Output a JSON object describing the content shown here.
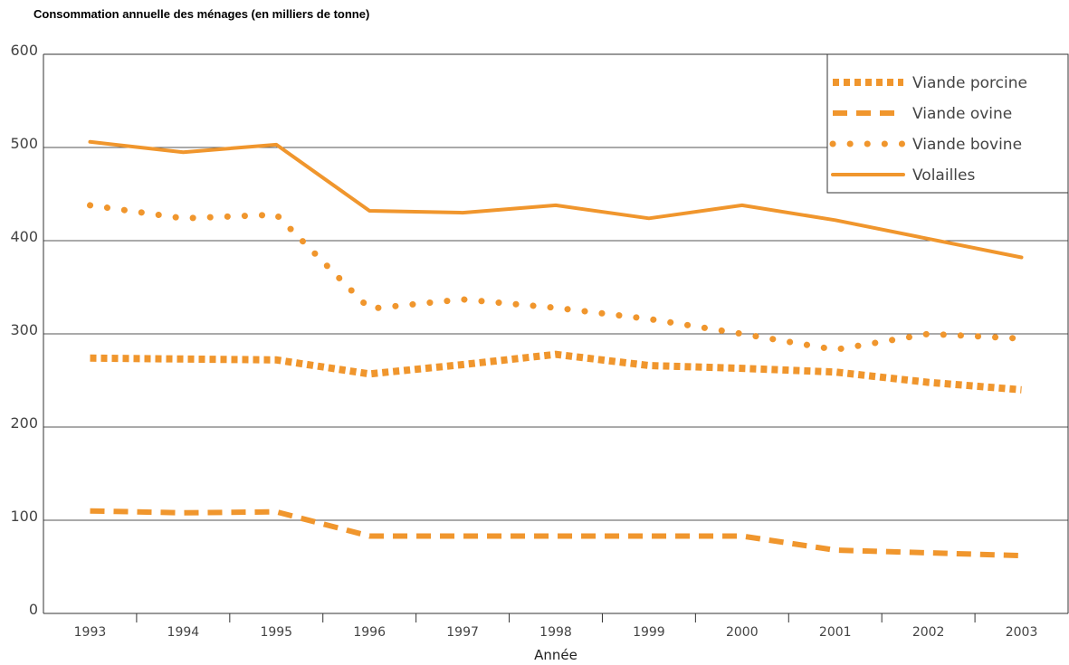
{
  "chart_data": {
    "type": "line",
    "title": "Consommation annuelle des ménages (en milliers de tonne)",
    "xlabel": "Année",
    "ylabel": "",
    "categories": [
      "1993",
      "1994",
      "1995",
      "1996",
      "1997",
      "1998",
      "1999",
      "2000",
      "2001",
      "2002",
      "2003"
    ],
    "ylim": [
      0,
      600
    ],
    "yticks": [
      0,
      100,
      200,
      300,
      400,
      500,
      600
    ],
    "grid": true,
    "legend_position": "top-right",
    "line_color": "#F0962D",
    "series": [
      {
        "name": "Viande porcine",
        "style": "square-dotted",
        "values": [
          274,
          273,
          272,
          257,
          267,
          278,
          266,
          263,
          259,
          248,
          240
        ]
      },
      {
        "name": "Viande ovine",
        "style": "dashed",
        "values": [
          110,
          108,
          109,
          83,
          83,
          83,
          83,
          83,
          68,
          65,
          62
        ]
      },
      {
        "name": "Viande bovine",
        "style": "dotted",
        "values": [
          438,
          424,
          428,
          327,
          337,
          328,
          316,
          300,
          283,
          300,
          295
        ]
      },
      {
        "name": "Volailles",
        "style": "solid",
        "values": [
          506,
          495,
          503,
          432,
          430,
          438,
          424,
          438,
          422,
          402,
          382
        ]
      }
    ]
  }
}
